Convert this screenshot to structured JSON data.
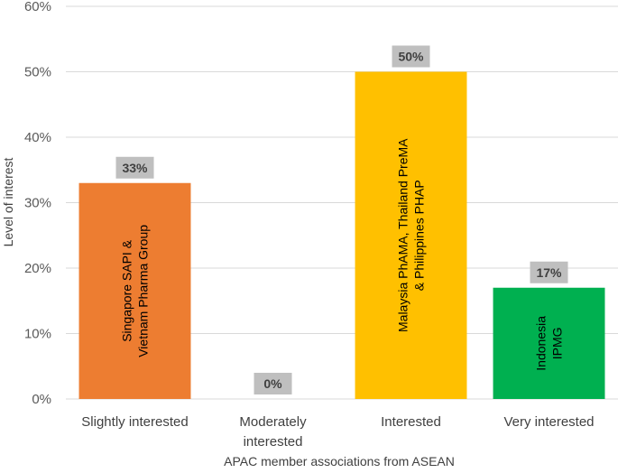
{
  "chart_data": {
    "type": "bar",
    "categories": [
      "Slightly interested",
      "Moderately interested",
      "Interested",
      "Very interested"
    ],
    "category_lines": [
      [
        "Slightly interested"
      ],
      [
        "Moderately",
        "interested"
      ],
      [
        "Interested"
      ],
      [
        "Very interested"
      ]
    ],
    "values": [
      33,
      0,
      50,
      17
    ],
    "data_labels": [
      "33%",
      "0%",
      "50%",
      "17%"
    ],
    "bar_colors": [
      "#ED7D31",
      "#A5A5A5",
      "#FFC000",
      "#00B050"
    ],
    "bar_text": [
      [
        "Singapore SAPI &",
        "Vietnam Pharma Group"
      ],
      [],
      [
        "Malaysia PhAMA, Thailand PreMA",
        "& Philippines PHAP"
      ],
      [
        "Indonesia",
        "IPMG"
      ]
    ],
    "ylim": [
      0,
      60
    ],
    "yticks": [
      0,
      10,
      20,
      30,
      40,
      50,
      60
    ],
    "ytick_labels": [
      "0%",
      "10%",
      "20%",
      "30%",
      "40%",
      "50%",
      "60%"
    ],
    "xlabel": "APAC member associations from ASEAN",
    "ylabel": "Level of interest",
    "grid": true,
    "label_box_color": "#BFBFBF"
  }
}
